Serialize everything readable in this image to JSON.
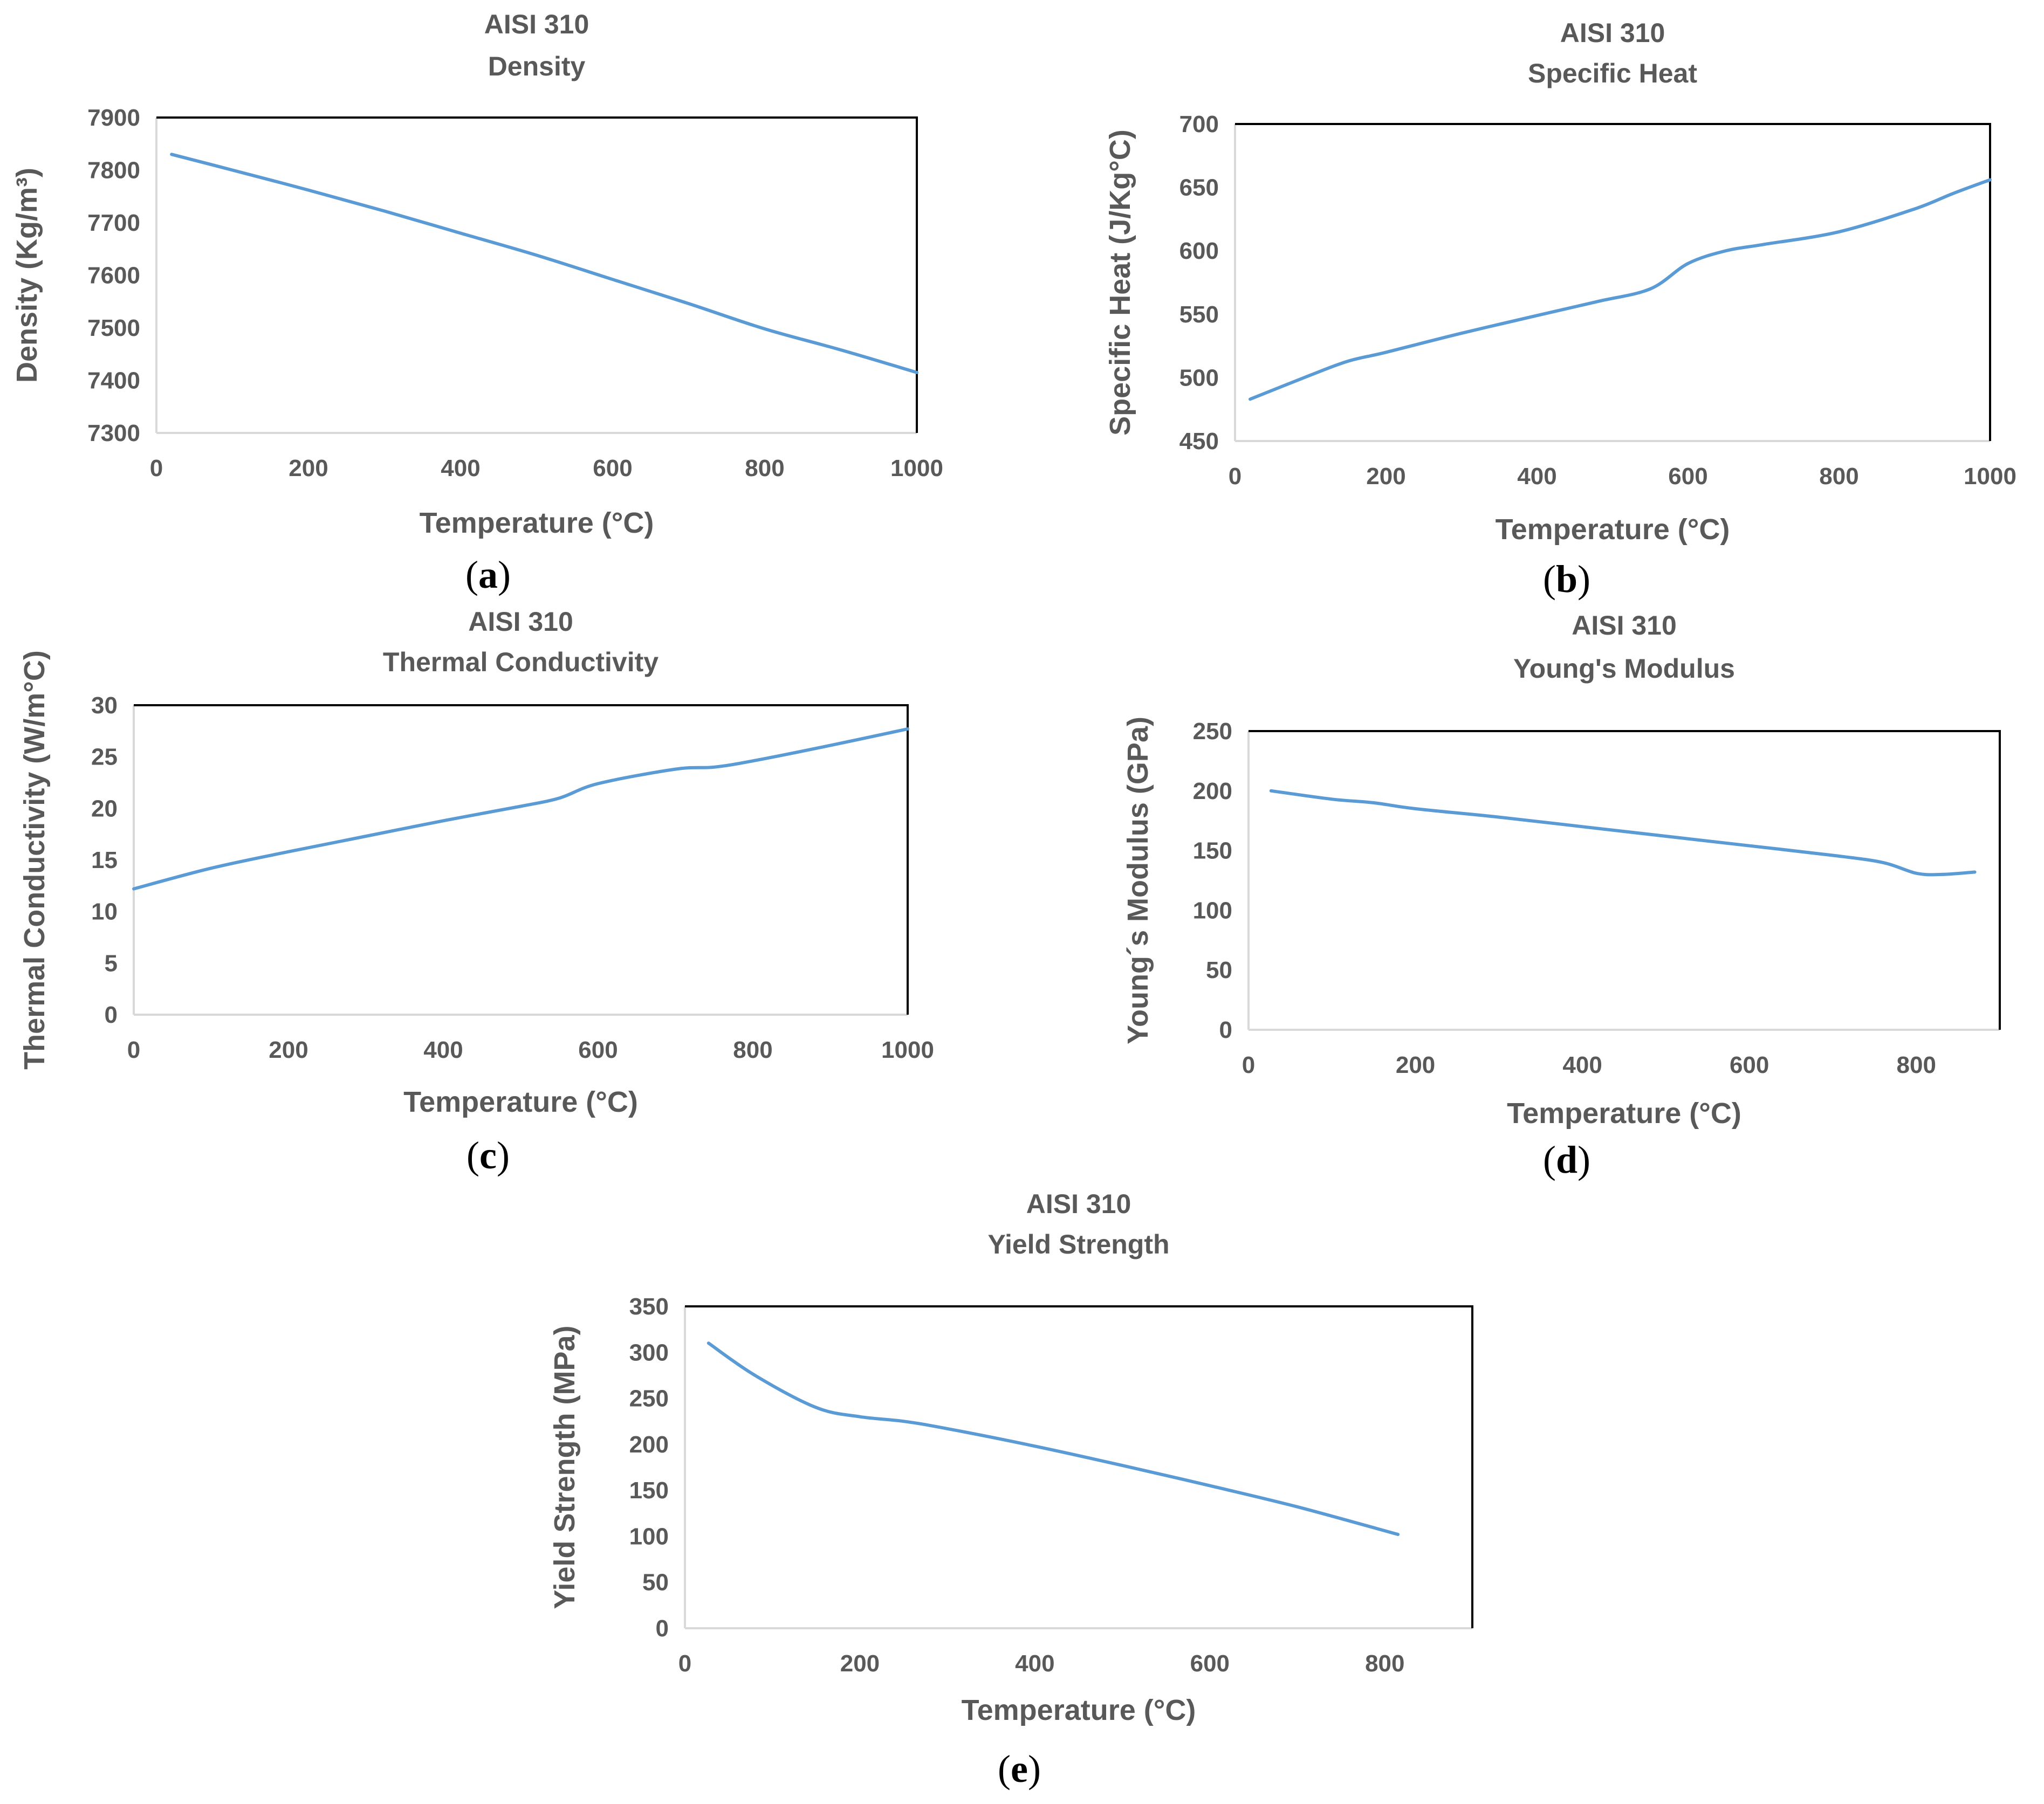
{
  "colors": {
    "series": "#5B9BD5",
    "text": "#595959",
    "frame": "#000000"
  },
  "chart_data": [
    {
      "id": "a",
      "type": "line",
      "title": [
        "AISI 310",
        "Density"
      ],
      "xlabel": "Temperature (°C)",
      "ylabel": "Density (Kg/m³)",
      "xlim": [
        0,
        1000
      ],
      "ylim": [
        7300,
        7900
      ],
      "xticks": [
        0,
        200,
        400,
        600,
        800,
        1000
      ],
      "yticks": [
        7300,
        7400,
        7500,
        7600,
        7700,
        7800,
        7900
      ],
      "caption": "a",
      "series": [
        {
          "name": "Density",
          "x": [
            20,
            100,
            200,
            300,
            400,
            500,
            600,
            700,
            800,
            900,
            1000
          ],
          "y": [
            7830,
            7800,
            7762,
            7722,
            7680,
            7638,
            7592,
            7546,
            7498,
            7458,
            7415
          ]
        }
      ]
    },
    {
      "id": "b",
      "type": "line",
      "title": [
        "AISI 310",
        "Specific Heat"
      ],
      "xlabel": "Temperature (°C)",
      "ylabel": "Specific Heat (J/Kg°C)",
      "xlim": [
        0,
        1000
      ],
      "ylim": [
        450,
        700
      ],
      "xticks": [
        0,
        200,
        400,
        600,
        800,
        1000
      ],
      "yticks": [
        450,
        500,
        550,
        600,
        650,
        700
      ],
      "caption": "b",
      "series": [
        {
          "name": "Specific Heat",
          "x": [
            20,
            100,
            150,
            200,
            300,
            400,
            480,
            550,
            600,
            650,
            700,
            800,
            900,
            950,
            1000
          ],
          "y": [
            483,
            502,
            513,
            520,
            535,
            549,
            560,
            570,
            590,
            600,
            605,
            615,
            633,
            645,
            656
          ]
        }
      ]
    },
    {
      "id": "c",
      "type": "line",
      "title": [
        "AISI 310",
        "Thermal Conductivity"
      ],
      "xlabel": "Temperature (°C)",
      "ylabel": "Thermal Conductivity (W/m°C)",
      "xlim": [
        0,
        1000
      ],
      "ylim": [
        0,
        30
      ],
      "xticks": [
        0,
        200,
        400,
        600,
        800,
        1000
      ],
      "yticks": [
        0,
        5,
        10,
        15,
        20,
        25,
        30
      ],
      "caption": "c",
      "series": [
        {
          "name": "Thermal Conductivity",
          "x": [
            0,
            100,
            200,
            300,
            400,
            500,
            550,
            600,
            700,
            750,
            800,
            900,
            1000
          ],
          "y": [
            12.2,
            14.2,
            15.8,
            17.3,
            18.8,
            20.2,
            21,
            22.4,
            23.8,
            24,
            24.6,
            26.1,
            27.7
          ]
        }
      ]
    },
    {
      "id": "d",
      "type": "line",
      "title": [
        "AISI 310",
        "Young's Modulus"
      ],
      "xlabel": "Temperature (°C)",
      "ylabel": "Young´s Modulus (GPa)",
      "xlim": [
        0,
        900
      ],
      "ylim": [
        0,
        250
      ],
      "xticks": [
        0,
        200,
        400,
        600,
        800
      ],
      "yticks": [
        0,
        50,
        100,
        150,
        200,
        250
      ],
      "caption": "d",
      "series": [
        {
          "name": "Young's Modulus",
          "x": [
            27,
            100,
            150,
            200,
            300,
            400,
            500,
            600,
            700,
            760,
            800,
            830,
            870
          ],
          "y": [
            200,
            193,
            190,
            185,
            178,
            170,
            162,
            154,
            146,
            140,
            131,
            130,
            132
          ]
        }
      ]
    },
    {
      "id": "e",
      "type": "line",
      "title": [
        "AISI 310",
        "Yield Strength"
      ],
      "xlabel": "Temperature (°C)",
      "ylabel": "Yield Strength (MPa)",
      "xlim": [
        0,
        900
      ],
      "ylim": [
        0,
        350
      ],
      "xticks": [
        0,
        200,
        400,
        600,
        800
      ],
      "yticks": [
        0,
        50,
        100,
        150,
        200,
        250,
        300,
        350
      ],
      "caption": "e",
      "series": [
        {
          "name": "Yield Strength",
          "x": [
            27,
            80,
            150,
            200,
            250,
            300,
            400,
            500,
            600,
            700,
            815
          ],
          "y": [
            310,
            275,
            240,
            230,
            225,
            217,
            198,
            177,
            155,
            132,
            102
          ]
        }
      ]
    }
  ]
}
